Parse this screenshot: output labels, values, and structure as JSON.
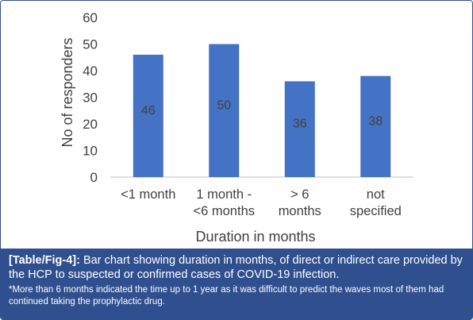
{
  "chart_data": {
    "type": "bar",
    "categories": [
      [
        "<1 month"
      ],
      [
        "1 month -",
        "<6 months"
      ],
      [
        "> 6",
        "months"
      ],
      [
        "not",
        "specified"
      ]
    ],
    "values": [
      46,
      50,
      36,
      38
    ],
    "data_labels": [
      "46",
      "50",
      "36",
      "38"
    ],
    "xlabel": "Duration in months",
    "ylabel": "No of responders",
    "ylim": [
      0,
      60
    ],
    "yticks": [
      0,
      10,
      20,
      30,
      40,
      50,
      60
    ],
    "grid": false,
    "bar_color": "#4472c4"
  },
  "caption": {
    "tag": "[Table/Fig-4]:",
    "text": " Bar chart showing duration in months, of direct or indirect care provided by the HCP to suspected or confirmed cases of COVID-19 infection.",
    "note": "*More than 6 months indicated the time up to 1 year as it was difficult to predict the waves most of them had continued taking the prophylactic drug."
  },
  "colors": {
    "caption_bg": "#2f4f8f",
    "border": "#2e4f8c",
    "axis_text": "#404040"
  }
}
